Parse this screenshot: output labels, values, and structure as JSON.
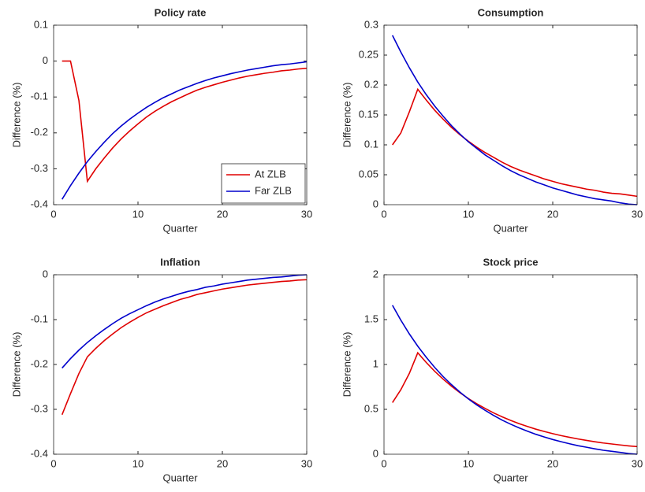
{
  "chart_data": [
    {
      "type": "line",
      "title": "Policy rate",
      "xlabel": "Quarter",
      "ylabel": "Difference (%)",
      "x": [
        1,
        2,
        3,
        4,
        5,
        6,
        7,
        8,
        9,
        10,
        11,
        12,
        13,
        14,
        15,
        16,
        17,
        18,
        19,
        20,
        21,
        22,
        23,
        24,
        25,
        26,
        27,
        28,
        29,
        30
      ],
      "xlim": [
        0,
        30
      ],
      "xticks": [
        0,
        10,
        20,
        30
      ],
      "ylim": [
        -0.4,
        0.1
      ],
      "yticks": [
        -0.4,
        -0.3,
        -0.2,
        -0.1,
        0,
        0.1
      ],
      "legend": "southeast",
      "series": [
        {
          "name": "At ZLB",
          "color": "#e00000",
          "values": [
            0,
            0,
            -0.11,
            -0.335,
            -0.3,
            -0.27,
            -0.242,
            -0.217,
            -0.195,
            -0.175,
            -0.156,
            -0.14,
            -0.126,
            -0.113,
            -0.102,
            -0.091,
            -0.081,
            -0.073,
            -0.066,
            -0.059,
            -0.053,
            -0.047,
            -0.042,
            -0.038,
            -0.034,
            -0.031,
            -0.027,
            -0.025,
            -0.022,
            -0.02
          ]
        },
        {
          "name": "Far ZLB",
          "color": "#0000cc",
          "values": [
            -0.385,
            -0.347,
            -0.312,
            -0.28,
            -0.252,
            -0.226,
            -0.202,
            -0.181,
            -0.162,
            -0.145,
            -0.129,
            -0.115,
            -0.102,
            -0.091,
            -0.08,
            -0.071,
            -0.062,
            -0.054,
            -0.047,
            -0.041,
            -0.035,
            -0.03,
            -0.025,
            -0.021,
            -0.017,
            -0.013,
            -0.01,
            -0.008,
            -0.005,
            -0.002
          ]
        }
      ]
    },
    {
      "type": "line",
      "title": "Consumption",
      "xlabel": "Quarter",
      "ylabel": "Difference (%)",
      "x": [
        1,
        2,
        3,
        4,
        5,
        6,
        7,
        8,
        9,
        10,
        11,
        12,
        13,
        14,
        15,
        16,
        17,
        18,
        19,
        20,
        21,
        22,
        23,
        24,
        25,
        26,
        27,
        28,
        29,
        30
      ],
      "xlim": [
        0,
        30
      ],
      "xticks": [
        0,
        10,
        20,
        30
      ],
      "ylim": [
        0,
        0.3
      ],
      "yticks": [
        0,
        0.05,
        0.1,
        0.15,
        0.2,
        0.25,
        0.3
      ],
      "series": [
        {
          "color": "#e00000",
          "values": [
            0.1,
            0.12,
            0.155,
            0.193,
            0.175,
            0.158,
            0.143,
            0.129,
            0.117,
            0.106,
            0.096,
            0.087,
            0.079,
            0.071,
            0.064,
            0.058,
            0.053,
            0.048,
            0.043,
            0.039,
            0.035,
            0.032,
            0.029,
            0.026,
            0.024,
            0.021,
            0.019,
            0.018,
            0.016,
            0.014
          ]
        },
        {
          "color": "#0000cc",
          "values": [
            0.283,
            0.255,
            0.229,
            0.205,
            0.184,
            0.165,
            0.148,
            0.132,
            0.118,
            0.105,
            0.094,
            0.083,
            0.074,
            0.065,
            0.057,
            0.05,
            0.044,
            0.038,
            0.033,
            0.028,
            0.024,
            0.02,
            0.016,
            0.013,
            0.01,
            0.008,
            0.006,
            0.003,
            0.001,
            0
          ]
        }
      ]
    },
    {
      "type": "line",
      "title": "Inflation",
      "xlabel": "Quarter",
      "ylabel": "Difference (%)",
      "x": [
        1,
        2,
        3,
        4,
        5,
        6,
        7,
        8,
        9,
        10,
        11,
        12,
        13,
        14,
        15,
        16,
        17,
        18,
        19,
        20,
        21,
        22,
        23,
        24,
        25,
        26,
        27,
        28,
        29,
        30
      ],
      "xlim": [
        0,
        30
      ],
      "xticks": [
        0,
        10,
        20,
        30
      ],
      "ylim": [
        -0.4,
        0
      ],
      "yticks": [
        -0.4,
        -0.3,
        -0.2,
        -0.1,
        0
      ],
      "series": [
        {
          "color": "#e00000",
          "values": [
            -0.312,
            -0.265,
            -0.22,
            -0.183,
            -0.164,
            -0.147,
            -0.132,
            -0.118,
            -0.106,
            -0.095,
            -0.085,
            -0.077,
            -0.069,
            -0.062,
            -0.055,
            -0.05,
            -0.044,
            -0.04,
            -0.036,
            -0.032,
            -0.029,
            -0.026,
            -0.023,
            -0.021,
            -0.019,
            -0.017,
            -0.015,
            -0.014,
            -0.012,
            -0.011
          ]
        },
        {
          "color": "#0000cc",
          "values": [
            -0.208,
            -0.187,
            -0.168,
            -0.151,
            -0.136,
            -0.122,
            -0.109,
            -0.097,
            -0.087,
            -0.078,
            -0.069,
            -0.061,
            -0.054,
            -0.048,
            -0.042,
            -0.037,
            -0.033,
            -0.028,
            -0.025,
            -0.021,
            -0.018,
            -0.015,
            -0.012,
            -0.01,
            -0.008,
            -0.006,
            -0.005,
            -0.003,
            -0.001,
            0
          ]
        }
      ]
    },
    {
      "type": "line",
      "title": "Stock price",
      "xlabel": "Quarter",
      "ylabel": "Difference (%)",
      "x": [
        1,
        2,
        3,
        4,
        5,
        6,
        7,
        8,
        9,
        10,
        11,
        12,
        13,
        14,
        15,
        16,
        17,
        18,
        19,
        20,
        21,
        22,
        23,
        24,
        25,
        26,
        27,
        28,
        29,
        30
      ],
      "xlim": [
        0,
        30
      ],
      "xticks": [
        0,
        10,
        20,
        30
      ],
      "ylim": [
        0,
        2
      ],
      "yticks": [
        0,
        0.5,
        1,
        1.5,
        2
      ],
      "series": [
        {
          "color": "#e00000",
          "values": [
            0.575,
            0.72,
            0.9,
            1.13,
            1.023,
            0.925,
            0.837,
            0.758,
            0.686,
            0.62,
            0.562,
            0.509,
            0.46,
            0.417,
            0.377,
            0.341,
            0.309,
            0.279,
            0.253,
            0.229,
            0.207,
            0.188,
            0.17,
            0.154,
            0.139,
            0.125,
            0.114,
            0.103,
            0.093,
            0.085
          ]
        },
        {
          "color": "#0000cc",
          "values": [
            1.66,
            1.493,
            1.341,
            1.204,
            1.081,
            0.968,
            0.866,
            0.775,
            0.692,
            0.616,
            0.549,
            0.488,
            0.432,
            0.38,
            0.335,
            0.294,
            0.257,
            0.222,
            0.192,
            0.164,
            0.139,
            0.116,
            0.095,
            0.078,
            0.06,
            0.044,
            0.032,
            0.02,
            0.007,
            0
          ]
        }
      ]
    }
  ]
}
